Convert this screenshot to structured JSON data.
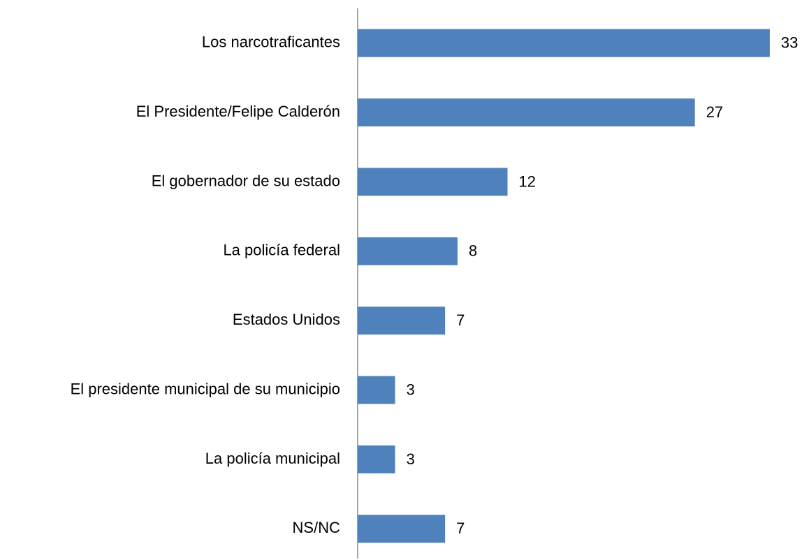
{
  "chart_data": {
    "type": "bar",
    "orientation": "horizontal",
    "categories": [
      "Los narcotraficantes",
      "El Presidente/Felipe Calderón",
      "El gobernador de su estado",
      "La policía federal",
      "Estados Unidos",
      "El presidente municipal de su municipio",
      "La policía municipal",
      "NS/NC"
    ],
    "values": [
      33,
      27,
      12,
      8,
      7,
      3,
      3,
      7
    ],
    "color": "#4f81bd"
  }
}
